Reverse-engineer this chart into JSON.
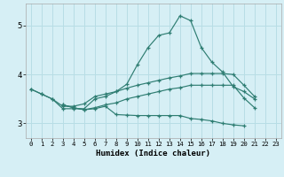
{
  "xlabel": "Humidex (Indice chaleur)",
  "x_values": [
    0,
    1,
    2,
    3,
    4,
    5,
    6,
    7,
    8,
    9,
    10,
    11,
    12,
    13,
    14,
    15,
    16,
    17,
    18,
    19,
    20,
    21,
    22,
    23
  ],
  "line1": [
    3.7,
    3.6,
    3.5,
    3.3,
    3.3,
    3.3,
    3.5,
    3.55,
    3.65,
    3.8,
    4.2,
    4.55,
    4.8,
    4.85,
    5.2,
    5.1,
    4.55,
    4.25,
    4.05,
    3.75,
    3.65,
    3.5,
    null,
    null
  ],
  "line2": [
    3.7,
    3.6,
    3.5,
    3.35,
    3.35,
    3.4,
    3.55,
    3.6,
    3.65,
    3.72,
    3.78,
    3.83,
    3.88,
    3.93,
    3.97,
    4.02,
    4.02,
    4.02,
    4.02,
    4.0,
    3.78,
    3.55,
    null,
    null
  ],
  "line3": [
    null,
    null,
    null,
    3.38,
    3.32,
    3.28,
    3.3,
    3.35,
    3.18,
    3.17,
    3.16,
    3.16,
    3.16,
    3.16,
    3.16,
    3.1,
    3.08,
    3.05,
    3.0,
    2.97,
    2.95,
    null,
    null,
    null
  ],
  "line4": [
    null,
    null,
    null,
    3.38,
    3.32,
    3.28,
    3.32,
    3.38,
    3.42,
    3.5,
    3.55,
    3.6,
    3.65,
    3.7,
    3.73,
    3.78,
    3.78,
    3.78,
    3.78,
    3.78,
    3.52,
    3.32,
    null,
    null
  ],
  "line_color": "#2e7d72",
  "bg_color": "#d6eff5",
  "grid_color": "#b8dde5",
  "ylim": [
    2.7,
    5.45
  ],
  "xlim": [
    -0.5,
    23.5
  ],
  "yticks": [
    3,
    4,
    5
  ],
  "xtick_labels": [
    "0",
    "1",
    "2",
    "3",
    "4",
    "5",
    "6",
    "7",
    "8",
    "9",
    "10",
    "11",
    "12",
    "13",
    "14",
    "15",
    "16",
    "17",
    "18",
    "19",
    "20",
    "21",
    "22",
    "23"
  ]
}
